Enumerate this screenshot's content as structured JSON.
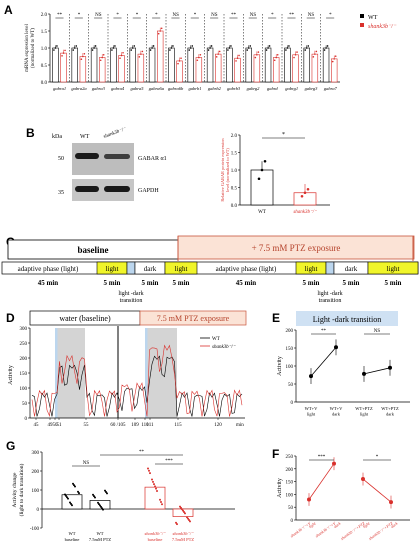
{
  "panels": {
    "A": "A",
    "B": "B",
    "C": "C",
    "D": "D",
    "E": "E",
    "F": "F",
    "G": "G"
  },
  "panelA": {
    "ylabel": "mRNA expression level\n(normalized to WT)",
    "yticks": [
      "0.0",
      "0.5",
      "1.0",
      "1.5",
      "2.0"
    ],
    "legend": {
      "wt": "WT",
      "mut": "shank3b⁻/⁻"
    },
    "genes": [
      "gabra1",
      "gabra2a",
      "gabra3",
      "gabra4",
      "gabra5",
      "gabra6a",
      "gabra6b",
      "gabrb1",
      "gabrb2",
      "gabrb3",
      "gabrg2",
      "gabrd",
      "gabrg1",
      "gabrg3",
      "gabra7"
    ],
    "wt_values": [
      1.0,
      1.0,
      1.0,
      1.0,
      1.0,
      1.0,
      1.0,
      1.0,
      1.0,
      1.0,
      1.0,
      1.0,
      1.0,
      1.0,
      1.0
    ],
    "mut_values": [
      0.85,
      0.75,
      0.72,
      0.78,
      0.82,
      1.5,
      0.62,
      0.72,
      0.82,
      0.7,
      0.8,
      0.72,
      0.8,
      0.82,
      0.68
    ],
    "sig": [
      "**",
      "*",
      "NS",
      "*",
      "*",
      "*",
      "NS",
      "*",
      "NS",
      "**",
      "NS",
      "*",
      "**",
      "NS",
      "*"
    ]
  },
  "panelB": {
    "kda": "kDa",
    "wt": "WT",
    "mut": "shank3b⁻/⁻",
    "marker50": "50",
    "marker35": "35",
    "band1": "GABAR α1",
    "band2": "GAPDH",
    "ylabel": "Relative GABAR protein expression\nlevel (normalized to WT)",
    "yticks": [
      "0.0",
      "0.5",
      "1.0",
      "1.5",
      "2.0"
    ],
    "xlabels": [
      "WT",
      "shank3b⁻/⁻"
    ],
    "values": [
      1.0,
      0.35
    ],
    "sig": "*"
  },
  "panelC": {
    "baseline": "baseline",
    "exposure": "+ 7.5 mM PTZ exposure",
    "seg1": "adaptive phase (light)",
    "light": "light",
    "dark": "dark",
    "seg2": "adaptive phase (light)",
    "t45": "45 min",
    "t5": "5 min",
    "transition": "light -dark\ntransition"
  },
  "panelD": {
    "water": "water   (baseline)",
    "ptz": "7.5 mM PTZ exposure",
    "ylabel": "Activity",
    "yticks": [
      "0",
      "50",
      "100",
      "150",
      "200",
      "250",
      "300"
    ],
    "xticks": [
      "45",
      "49",
      "50",
      "51",
      "55",
      "60 /105",
      "109",
      "110",
      "111",
      "115",
      "120"
    ],
    "xunit": "min",
    "legend": {
      "wt": "WT",
      "mut": "shank3b⁻/⁻"
    }
  },
  "panelE": {
    "title": "Light -dark transition",
    "ylabel": "Activity",
    "yticks": [
      "0",
      "50",
      "100",
      "150",
      "200"
    ],
    "xlabels": [
      "WT+V\nlight",
      "WT+V\ndark",
      "WT+PTZ\nlight",
      "WT+PTZ\ndark"
    ],
    "values": [
      72,
      152,
      78,
      95
    ],
    "sig": [
      "**",
      "NS"
    ]
  },
  "panelF": {
    "ylabel": "Activity",
    "yticks": [
      "0",
      "50",
      "100",
      "150",
      "200",
      "250"
    ],
    "xlabels": [
      "shank3b⁻/⁻+V\nlight",
      "shank3b⁻/⁻+V\ndark",
      "shank3b⁻/⁻+PTZ\nlight",
      "shank3b⁻/⁻+PTZ\ndark"
    ],
    "values": [
      80,
      220,
      160,
      70
    ],
    "sig": [
      "***",
      "*"
    ]
  },
  "panelG": {
    "ylabel": "Activity change\n(light to dark transition)",
    "yticks": [
      "-100",
      "0",
      "100",
      "200",
      "300"
    ],
    "xlabels": [
      "WT\nbaseline",
      "WT\n7.5mM PTZ",
      "shank3b⁻/⁻\nbaseline",
      "shank3b⁻/⁻\n7.5mM PTZ"
    ],
    "values": [
      75,
      45,
      115,
      -40
    ],
    "sig": [
      "NS",
      "**",
      "***"
    ]
  }
}
